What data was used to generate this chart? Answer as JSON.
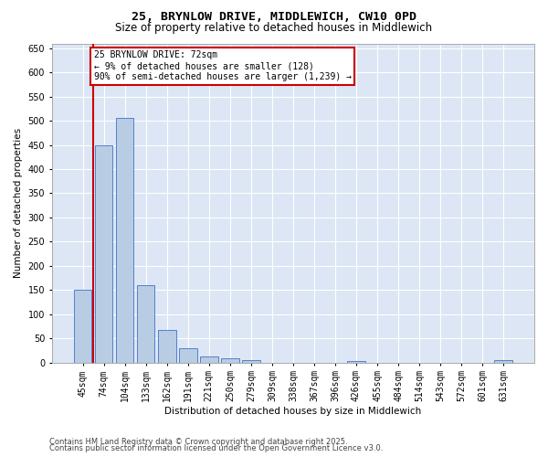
{
  "title_line1": "25, BRYNLOW DRIVE, MIDDLEWICH, CW10 0PD",
  "title_line2": "Size of property relative to detached houses in Middlewich",
  "xlabel": "Distribution of detached houses by size in Middlewich",
  "ylabel": "Number of detached properties",
  "categories": [
    "45sqm",
    "74sqm",
    "104sqm",
    "133sqm",
    "162sqm",
    "191sqm",
    "221sqm",
    "250sqm",
    "279sqm",
    "309sqm",
    "338sqm",
    "367sqm",
    "396sqm",
    "426sqm",
    "455sqm",
    "484sqm",
    "514sqm",
    "543sqm",
    "572sqm",
    "601sqm",
    "631sqm"
  ],
  "values": [
    150,
    450,
    505,
    160,
    67,
    30,
    13,
    8,
    5,
    0,
    0,
    0,
    0,
    3,
    0,
    0,
    0,
    0,
    0,
    0,
    4
  ],
  "bar_color": "#b8cce4",
  "bar_edge_color": "#4472c4",
  "vline_color": "#cc0000",
  "annotation_text": "25 BRYNLOW DRIVE: 72sqm\n← 9% of detached houses are smaller (128)\n90% of semi-detached houses are larger (1,239) →",
  "annotation_box_color": "#ffffff",
  "annotation_box_edge": "#cc0000",
  "ylim": [
    0,
    660
  ],
  "yticks": [
    0,
    50,
    100,
    150,
    200,
    250,
    300,
    350,
    400,
    450,
    500,
    550,
    600,
    650
  ],
  "footer_line1": "Contains HM Land Registry data © Crown copyright and database right 2025.",
  "footer_line2": "Contains public sector information licensed under the Open Government Licence v3.0.",
  "background_color": "#ffffff",
  "plot_background": "#dce6f5",
  "grid_color": "#ffffff",
  "title_fontsize": 9.5,
  "subtitle_fontsize": 8.5,
  "axis_label_fontsize": 7.5,
  "tick_fontsize": 7,
  "annotation_fontsize": 7,
  "footer_fontsize": 6
}
